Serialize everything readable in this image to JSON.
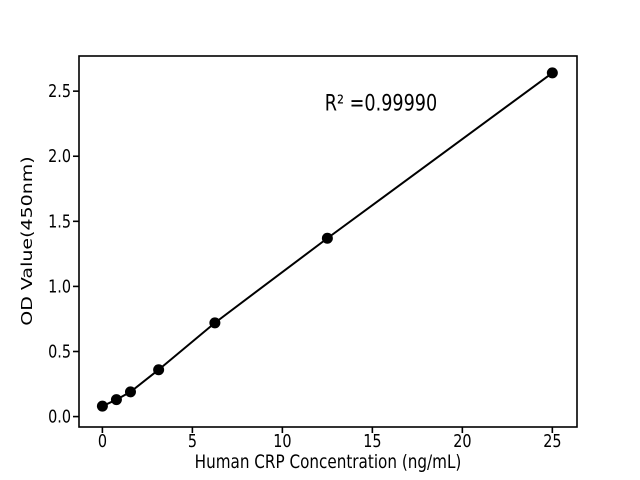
{
  "figure": {
    "background_color": "#ffffff",
    "text_color": "#000000"
  },
  "chart_data": {
    "type": "scatter",
    "title": "",
    "xlabel": "Human CRP Concentration (ng/mL)",
    "ylabel": "OD Value(450nm)",
    "x": [
      0,
      0.78,
      1.56,
      3.125,
      6.25,
      12.5,
      25
    ],
    "y": [
      0.08,
      0.13,
      0.19,
      0.36,
      0.72,
      1.37,
      2.64
    ],
    "line_through_points": true,
    "annotation": {
      "text": "R² =0.99990",
      "x_data": 15.5,
      "y_data": 2.4
    },
    "xticks": {
      "values": [
        0,
        5,
        10,
        15,
        20,
        25
      ],
      "labels": [
        "0",
        "5",
        "10",
        "15",
        "20",
        "25"
      ]
    },
    "yticks": {
      "values": [
        0,
        0.5,
        1.0,
        1.5,
        2.0,
        2.5
      ],
      "labels": [
        "0.0",
        "0.5",
        "1.0",
        "1.5",
        "2.0",
        "2.5"
      ]
    },
    "xlim": [
      -1.3,
      26.37
    ],
    "ylim": [
      -0.08,
      2.77
    ],
    "grid": false,
    "legend": "none",
    "marker_color": "#000000",
    "line_color": "#000000",
    "axis_color": "#000000"
  }
}
